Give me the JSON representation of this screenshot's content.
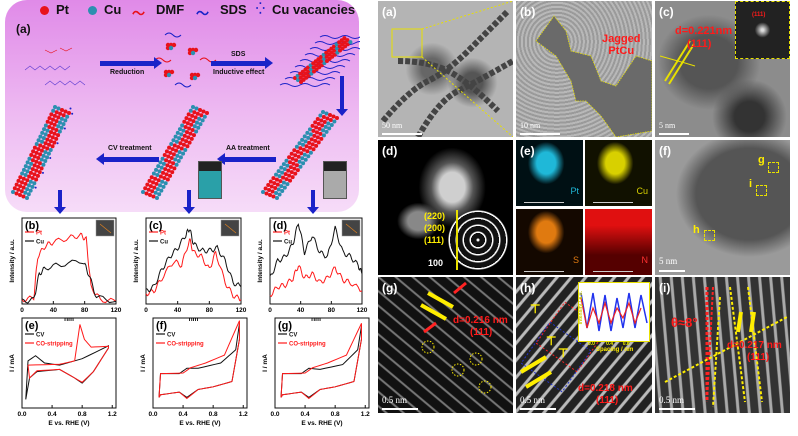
{
  "schematic": {
    "panel_label": "(a)",
    "legend": [
      {
        "label": "Pt",
        "color": "#e8121b"
      },
      {
        "label": "Cu",
        "color": "#2b8fb0"
      },
      {
        "label": "DMF",
        "color": "#e8121b"
      },
      {
        "label": "SDS",
        "color": "#1a22c8"
      },
      {
        "label": "Cu vacancies",
        "color": "#1a22c8"
      }
    ],
    "arrows": {
      "reduction": "Reduction",
      "sds": "SDS",
      "inductive": "Inductive effect",
      "aa": "AA treatment",
      "cv": "CV treatment"
    }
  },
  "chart_data": [
    {
      "id": "b",
      "type": "line",
      "panel_label": "(b)",
      "xlabel": "nm",
      "ylabel": "Intensity / a.u.",
      "xlim": [
        0,
        120
      ],
      "ylim": [
        0,
        1
      ],
      "xticks": [
        "0",
        "40",
        "80",
        "120"
      ],
      "series": [
        {
          "name": "Pt",
          "color": "#ff1a1a",
          "points": [
            [
              0,
              0.05
            ],
            [
              15,
              0.07
            ],
            [
              20,
              0.55
            ],
            [
              30,
              0.68
            ],
            [
              40,
              0.72
            ],
            [
              60,
              0.77
            ],
            [
              75,
              0.8
            ],
            [
              82,
              0.75
            ],
            [
              88,
              0.2
            ],
            [
              100,
              0.05
            ],
            [
              120,
              0.03
            ]
          ]
        },
        {
          "name": "Cu",
          "color": "#111111",
          "points": [
            [
              0,
              0.03
            ],
            [
              15,
              0.05
            ],
            [
              22,
              0.35
            ],
            [
              30,
              0.42
            ],
            [
              50,
              0.46
            ],
            [
              78,
              0.5
            ],
            [
              85,
              0.35
            ],
            [
              95,
              0.08
            ],
            [
              120,
              0.03
            ]
          ]
        }
      ]
    },
    {
      "id": "c",
      "type": "line",
      "panel_label": "(c)",
      "xlabel": "nm",
      "ylabel": "Intensity / a.u.",
      "xlim": [
        0,
        120
      ],
      "ylim": [
        0,
        1
      ],
      "xticks": [
        "0",
        "40",
        "80",
        "120"
      ],
      "series": [
        {
          "name": "Pt",
          "color": "#ff1a1a",
          "points": [
            [
              0,
              0.12
            ],
            [
              10,
              0.15
            ],
            [
              20,
              0.3
            ],
            [
              35,
              0.5
            ],
            [
              45,
              0.45
            ],
            [
              55,
              0.75
            ],
            [
              60,
              0.6
            ],
            [
              70,
              0.55
            ],
            [
              80,
              0.4
            ],
            [
              88,
              0.6
            ],
            [
              100,
              0.25
            ],
            [
              110,
              0.1
            ],
            [
              120,
              0.05
            ]
          ]
        },
        {
          "name": "Cu",
          "color": "#111111",
          "points": [
            [
              0,
              0.15
            ],
            [
              10,
              0.2
            ],
            [
              20,
              0.4
            ],
            [
              30,
              0.55
            ],
            [
              40,
              0.65
            ],
            [
              50,
              0.8
            ],
            [
              55,
              0.88
            ],
            [
              60,
              0.7
            ],
            [
              70,
              0.62
            ],
            [
              80,
              0.62
            ],
            [
              90,
              0.65
            ],
            [
              100,
              0.5
            ],
            [
              110,
              0.25
            ],
            [
              120,
              0.2
            ]
          ]
        }
      ]
    },
    {
      "id": "d",
      "type": "line",
      "panel_label": "(d)",
      "xlabel": "nm",
      "ylabel": "Intensity / a.u.",
      "xlim": [
        0,
        120
      ],
      "ylim": [
        0,
        1
      ],
      "xticks": [
        "0",
        "40",
        "80",
        "120"
      ],
      "series": [
        {
          "name": "Pt",
          "color": "#ff1a1a",
          "points": [
            [
              0,
              0.1
            ],
            [
              10,
              0.2
            ],
            [
              20,
              0.22
            ],
            [
              30,
              0.3
            ],
            [
              37,
              0.45
            ],
            [
              45,
              0.3
            ],
            [
              55,
              0.35
            ],
            [
              65,
              0.25
            ],
            [
              75,
              0.3
            ],
            [
              85,
              0.42
            ],
            [
              95,
              0.28
            ],
            [
              105,
              0.25
            ],
            [
              120,
              0.15
            ]
          ]
        },
        {
          "name": "Cu",
          "color": "#111111",
          "points": [
            [
              0,
              0.3
            ],
            [
              10,
              0.5
            ],
            [
              20,
              0.55
            ],
            [
              30,
              0.7
            ],
            [
              37,
              0.95
            ],
            [
              45,
              0.6
            ],
            [
              55,
              0.8
            ],
            [
              65,
              0.6
            ],
            [
              75,
              0.55
            ],
            [
              85,
              0.88
            ],
            [
              95,
              0.6
            ],
            [
              105,
              0.55
            ],
            [
              115,
              0.45
            ],
            [
              120,
              0.35
            ]
          ]
        }
      ]
    },
    {
      "id": "e",
      "type": "line",
      "panel_label": "(e)",
      "xlabel": "E vs. RHE (V)",
      "ylabel": "I / mA",
      "xlim": [
        0,
        1.25
      ],
      "ylim": [
        -1,
        1.1
      ],
      "xticks": [
        "0.0",
        "0.4",
        "0.8",
        "1.2"
      ],
      "series": [
        {
          "name": "CV",
          "color": "#111111",
          "points": [
            [
              0.05,
              -0.8
            ],
            [
              0.08,
              0.1
            ],
            [
              0.18,
              0.22
            ],
            [
              0.3,
              0.05
            ],
            [
              0.5,
              0.0
            ],
            [
              0.8,
              0.15
            ],
            [
              1.15,
              0.45
            ],
            [
              1.15,
              0.4
            ],
            [
              0.95,
              -0.15
            ],
            [
              0.8,
              -0.42
            ],
            [
              0.7,
              -0.3
            ],
            [
              0.5,
              -0.1
            ],
            [
              0.2,
              -0.15
            ],
            [
              0.1,
              -0.3
            ],
            [
              0.05,
              -0.8
            ]
          ]
        },
        {
          "name": "CO-stripping",
          "color": "#ff1a1a",
          "points": [
            [
              0.08,
              0
            ],
            [
              0.5,
              0.02
            ],
            [
              0.7,
              0.1
            ],
            [
              0.77,
              0.95
            ],
            [
              0.83,
              0.6
            ],
            [
              0.92,
              0.42
            ],
            [
              1.15,
              0.44
            ],
            [
              1.15,
              0.4
            ],
            [
              0.95,
              -0.15
            ],
            [
              0.8,
              -0.4
            ],
            [
              0.7,
              -0.3
            ],
            [
              0.5,
              -0.1
            ],
            [
              0.2,
              -0.13
            ],
            [
              0.1,
              -0.3
            ],
            [
              0.08,
              0
            ]
          ]
        }
      ]
    },
    {
      "id": "f",
      "type": "line",
      "panel_label": "(f)",
      "xlabel": "E vs. RHE (V)",
      "ylabel": "I / mA",
      "xlim": [
        0,
        1.25
      ],
      "ylim": [
        -0.7,
        1
      ],
      "xticks": [
        "0.0",
        "0.4",
        "0.8",
        "1.2"
      ],
      "series": [
        {
          "name": "CV",
          "color": "#111111",
          "points": [
            [
              0.08,
              -0.5
            ],
            [
              0.1,
              -0.05
            ],
            [
              0.35,
              -0.05
            ],
            [
              0.45,
              0.05
            ],
            [
              0.6,
              0.05
            ],
            [
              0.9,
              0.15
            ],
            [
              1.1,
              0.4
            ],
            [
              1.15,
              0.9
            ],
            [
              1.15,
              0.6
            ],
            [
              1.05,
              -0.2
            ],
            [
              0.8,
              -0.3
            ],
            [
              0.6,
              -0.35
            ],
            [
              0.45,
              -0.5
            ],
            [
              0.35,
              -0.4
            ],
            [
              0.1,
              -0.45
            ],
            [
              0.08,
              -0.5
            ]
          ]
        },
        {
          "name": "CO-stripping",
          "color": "#ff1a1a",
          "points": [
            [
              0.08,
              -0.5
            ],
            [
              0.1,
              -0.05
            ],
            [
              0.4,
              -0.04
            ],
            [
              0.5,
              0.06
            ],
            [
              0.7,
              0.15
            ],
            [
              0.95,
              0.3
            ],
            [
              1.15,
              0.95
            ],
            [
              1.15,
              0.6
            ],
            [
              1.05,
              -0.2
            ],
            [
              0.8,
              -0.3
            ],
            [
              0.6,
              -0.35
            ],
            [
              0.45,
              -0.52
            ],
            [
              0.35,
              -0.4
            ],
            [
              0.1,
              -0.45
            ],
            [
              0.08,
              -0.5
            ]
          ]
        }
      ]
    },
    {
      "id": "g",
      "type": "line",
      "panel_label": "(g)",
      "xlabel": "E vs. RHE (V)",
      "ylabel": "I / mA",
      "xlim": [
        0,
        1.25
      ],
      "ylim": [
        -0.7,
        1
      ],
      "xticks": [
        "0.0",
        "0.4",
        "0.8",
        "1.2"
      ],
      "series": [
        {
          "name": "CV",
          "color": "#111111",
          "points": [
            [
              0.08,
              -0.5
            ],
            [
              0.1,
              -0.05
            ],
            [
              0.35,
              -0.05
            ],
            [
              0.45,
              0.05
            ],
            [
              0.6,
              0.03
            ],
            [
              0.9,
              0.12
            ],
            [
              1.1,
              0.4
            ],
            [
              1.15,
              0.85
            ],
            [
              1.15,
              0.6
            ],
            [
              1.05,
              -0.2
            ],
            [
              0.8,
              -0.3
            ],
            [
              0.6,
              -0.35
            ],
            [
              0.45,
              -0.5
            ],
            [
              0.35,
              -0.4
            ],
            [
              0.1,
              -0.45
            ],
            [
              0.08,
              -0.5
            ]
          ]
        },
        {
          "name": "CO-stripping",
          "color": "#ff1a1a",
          "points": [
            [
              0.08,
              -0.5
            ],
            [
              0.1,
              -0.05
            ],
            [
              0.4,
              -0.04
            ],
            [
              0.5,
              0.06
            ],
            [
              0.7,
              0.15
            ],
            [
              0.95,
              0.3
            ],
            [
              1.15,
              0.9
            ],
            [
              1.15,
              0.6
            ],
            [
              1.05,
              -0.2
            ],
            [
              0.8,
              -0.3
            ],
            [
              0.6,
              -0.35
            ],
            [
              0.45,
              -0.52
            ],
            [
              0.35,
              -0.4
            ],
            [
              0.1,
              -0.45
            ],
            [
              0.08,
              -0.5
            ]
          ]
        }
      ]
    }
  ],
  "tem": {
    "a": {
      "label": "(a)",
      "scale": "50 nm"
    },
    "b": {
      "label": "(b)",
      "scale": "10 nm",
      "annotation": "Jagged",
      "annotation2": "PtCu"
    },
    "c": {
      "label": "(c)",
      "scale": "5 nm",
      "d": "d=0.221nm",
      "plane": "(111)",
      "fft_plane": "(111)"
    },
    "d": {
      "label": "(d)",
      "rings": [
        "(220)",
        "(200)",
        "(111)"
      ],
      "scale": "100"
    },
    "e": {
      "label": "(e)",
      "maps": [
        {
          "element": "Pt",
          "color": "#1fb8d8"
        },
        {
          "element": "Cu",
          "color": "#d8d000"
        },
        {
          "element": "S",
          "color": "#e07a10"
        },
        {
          "element": "N",
          "color": "#e01010"
        }
      ],
      "scale": "200 nm"
    },
    "f": {
      "label": "(f)",
      "scale": "5 nm",
      "regions": [
        "g",
        "i",
        "h"
      ]
    },
    "g": {
      "label": "(g)",
      "scale": "0.5 nm",
      "d": "d=0.216 nm",
      "plane": "(111)"
    },
    "h": {
      "label": "(h)",
      "scale": "0.5 nm",
      "d": "d=0.218 nm",
      "plane": "(111)",
      "inset_ylabel": "Intensity / a.u.",
      "inset_xlabel": "Spacing / nm",
      "inset_xticks": [
        "0.0",
        "0.4",
        "0.8"
      ]
    },
    "i": {
      "label": "(i)",
      "scale": "0.5 nm",
      "angle": "θ≈8°",
      "d": "d=0.217 nm",
      "plane": "(111)"
    }
  }
}
